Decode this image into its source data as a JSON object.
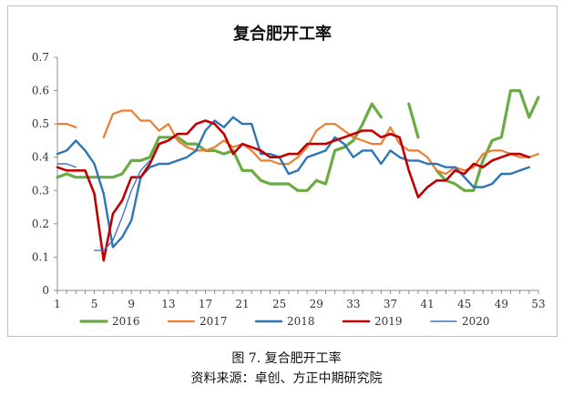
{
  "chart_data": {
    "type": "line",
    "title": "复合肥开工率",
    "xlabel": "",
    "ylabel": "",
    "ylim": [
      0,
      0.7
    ],
    "xlim": [
      1,
      53
    ],
    "y_ticks": [
      "0",
      "0.1",
      "0.2",
      "0.3",
      "0.4",
      "0.5",
      "0.6",
      "0.7"
    ],
    "x_ticks": [
      "1",
      "5",
      "9",
      "13",
      "17",
      "21",
      "25",
      "29",
      "33",
      "37",
      "41",
      "45",
      "49",
      "53"
    ],
    "grid": false,
    "legend_position": "bottom",
    "series": [
      {
        "name": "2016",
        "color": "#6aab44",
        "values": [
          0.34,
          0.35,
          0.34,
          0.34,
          0.34,
          0.34,
          0.34,
          0.35,
          0.39,
          0.39,
          0.4,
          0.46,
          0.46,
          0.46,
          0.44,
          0.44,
          0.42,
          0.42,
          0.41,
          0.42,
          0.36,
          0.36,
          0.33,
          0.32,
          0.32,
          0.32,
          0.3,
          0.3,
          0.33,
          0.32,
          0.42,
          0.43,
          0.45,
          0.5,
          0.56,
          0.52,
          null,
          null,
          0.56,
          0.46,
          null,
          0.36,
          0.33,
          0.32,
          0.3,
          0.3,
          0.39,
          0.45,
          0.46,
          0.6,
          0.6,
          0.52,
          0.58
        ]
      },
      {
        "name": "2017",
        "color": "#ed7d31",
        "values": [
          0.5,
          0.5,
          0.49,
          null,
          null,
          0.46,
          0.53,
          0.54,
          0.54,
          0.51,
          0.51,
          0.48,
          0.5,
          0.45,
          0.43,
          0.42,
          0.42,
          0.43,
          0.45,
          0.43,
          0.44,
          0.42,
          0.39,
          0.39,
          0.38,
          0.38,
          0.4,
          0.43,
          0.48,
          0.5,
          0.5,
          0.48,
          0.46,
          0.45,
          0.44,
          0.44,
          0.49,
          0.44,
          0.42,
          0.42,
          0.4,
          0.36,
          0.35,
          0.37,
          0.36,
          0.37,
          0.41,
          0.42,
          0.42,
          0.41,
          0.4,
          0.4,
          0.41
        ]
      },
      {
        "name": "2018",
        "color": "#2e75b6",
        "values": [
          0.41,
          0.42,
          0.45,
          0.42,
          0.38,
          0.29,
          0.13,
          0.16,
          0.21,
          0.34,
          0.37,
          0.38,
          0.38,
          0.39,
          0.4,
          0.42,
          0.48,
          0.51,
          0.49,
          0.52,
          0.5,
          0.5,
          0.41,
          0.41,
          0.4,
          0.35,
          0.36,
          0.4,
          0.41,
          0.42,
          0.46,
          0.44,
          0.4,
          0.42,
          0.42,
          0.38,
          0.42,
          0.4,
          0.39,
          0.39,
          0.38,
          0.38,
          0.37,
          0.37,
          0.34,
          0.31,
          0.31,
          0.32,
          0.35,
          0.35,
          0.36,
          0.37,
          null
        ]
      },
      {
        "name": "2019",
        "color": "#c00000",
        "values": [
          0.37,
          0.36,
          0.36,
          0.36,
          0.29,
          0.09,
          0.23,
          0.27,
          0.34,
          0.34,
          0.38,
          0.44,
          0.45,
          0.47,
          0.47,
          0.5,
          0.51,
          0.5,
          0.47,
          0.41,
          0.44,
          0.43,
          0.42,
          0.4,
          0.4,
          0.41,
          0.41,
          0.44,
          0.44,
          0.44,
          0.45,
          0.46,
          0.47,
          0.48,
          0.48,
          0.46,
          0.47,
          0.46,
          0.36,
          0.28,
          0.31,
          0.33,
          0.33,
          0.36,
          0.35,
          0.38,
          0.37,
          0.39,
          0.4,
          0.41,
          0.41,
          0.4,
          null
        ]
      },
      {
        "name": "2020",
        "color": "#4472c4",
        "values": [
          0.38,
          0.38,
          0.37,
          null,
          0.12,
          0.12,
          0.15,
          0.22,
          0.3,
          0.36,
          0.39,
          null,
          null,
          null,
          null,
          null,
          null,
          null,
          null,
          null,
          null,
          null,
          null,
          null,
          null,
          null,
          null,
          null,
          null,
          null,
          null,
          null,
          null,
          null,
          null,
          null,
          null,
          null,
          null,
          null,
          null,
          null,
          null,
          null,
          null,
          null,
          null,
          null,
          null,
          null,
          null,
          null,
          null
        ]
      }
    ]
  },
  "caption": {
    "figure_title": "图 7. 复合肥开工率",
    "source": "资料来源：卓创、方正中期研究院"
  }
}
